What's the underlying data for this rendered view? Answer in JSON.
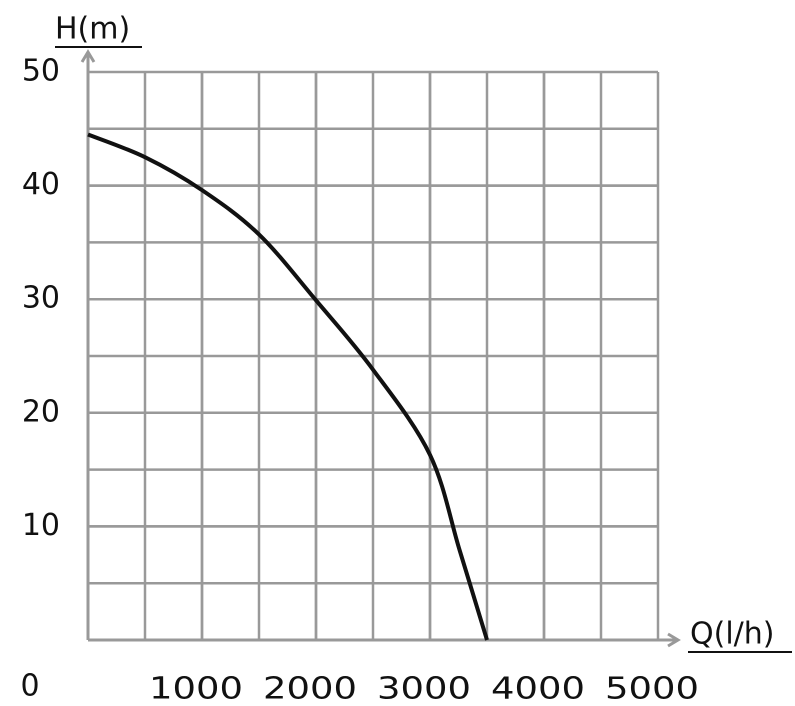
{
  "chart_data": {
    "type": "line",
    "y_label": "H(m)",
    "x_label": "Q(l/h)",
    "x": [
      0,
      500,
      1000,
      1500,
      2000,
      2500,
      3000,
      3260,
      3500
    ],
    "series": [
      {
        "name": "H",
        "color": "#111111",
        "values": [
          44.5,
          42.5,
          39.6,
          35.7,
          29.9,
          23.8,
          16.3,
          7.9,
          0
        ]
      }
    ],
    "xlim": [
      0,
      5000
    ],
    "xticks": [
      0,
      1000,
      2000,
      3000,
      4000,
      5000
    ],
    "ylim": [
      0,
      50
    ],
    "yticks": [
      10,
      20,
      30,
      40,
      50
    ],
    "grid": true
  }
}
